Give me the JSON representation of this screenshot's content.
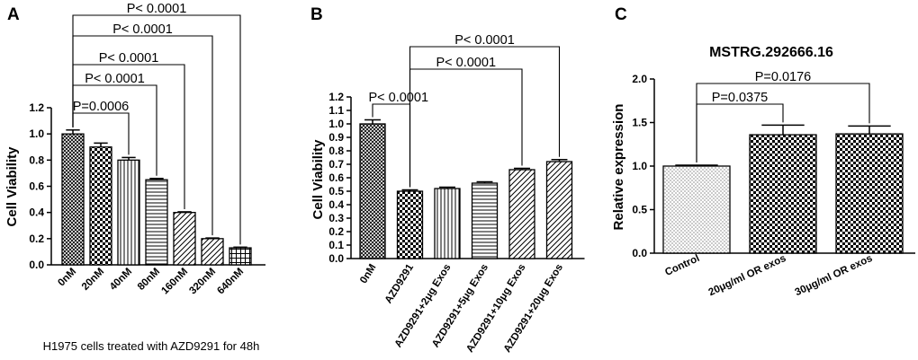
{
  "chart_data": [
    {
      "type": "bar",
      "panel": "A",
      "title": "",
      "ylabel": "Cell Viability",
      "xlabel": "H1975 cells treated with AZD9291 for 48h",
      "ylim": [
        0,
        1.2
      ],
      "yticks": [
        "0.0",
        "0.2",
        "0.4",
        "0.6",
        "0.8",
        "1.0",
        "1.2"
      ],
      "categories": [
        "0nM",
        "20nM",
        "40nM",
        "80nM",
        "160nM",
        "320nM",
        "640nM"
      ],
      "values": [
        1.0,
        0.9,
        0.8,
        0.65,
        0.4,
        0.2,
        0.13
      ],
      "errors": [
        0.03,
        0.03,
        0.02,
        0.01,
        0.005,
        0.005,
        0.005
      ],
      "patterns": [
        "crosshatch",
        "checker",
        "vlines",
        "hlines",
        "diag",
        "diag",
        "grid"
      ],
      "comparisons": [
        {
          "from": 0,
          "to": 2,
          "label": "P=0.0006"
        },
        {
          "from": 0,
          "to": 3,
          "label": "P< 0.0001"
        },
        {
          "from": 0,
          "to": 4,
          "label": "P< 0.0001"
        },
        {
          "from": 0,
          "to": 5,
          "label": "P< 0.0001"
        },
        {
          "from": 0,
          "to": 6,
          "label": "P< 0.0001"
        }
      ]
    },
    {
      "type": "bar",
      "panel": "B",
      "title": "",
      "ylabel": "Cell Viability",
      "xlabel": "",
      "ylim": [
        0,
        1.2
      ],
      "yticks": [
        "0.0",
        "0.1",
        "0.2",
        "0.3",
        "0.4",
        "0.5",
        "0.6",
        "0.7",
        "0.8",
        "0.9",
        "1.0",
        "1.1",
        "1.2"
      ],
      "categories": [
        "0nM",
        "AZD9291",
        "AZD9291+2μg Exos",
        "AZD9291+5μg Exos",
        "AZD9291+10μg Exos",
        "AZD9291+20μg Exos"
      ],
      "values": [
        1.0,
        0.5,
        0.52,
        0.56,
        0.66,
        0.72
      ],
      "errors": [
        0.03,
        0.01,
        0.01,
        0.01,
        0.01,
        0.015
      ],
      "patterns": [
        "crosshatch",
        "checker",
        "vlines",
        "hlines",
        "diag",
        "diag"
      ],
      "comparisons": [
        {
          "from": 0,
          "to": 1,
          "label": "P< 0.0001"
        },
        {
          "from": 1,
          "to": 4,
          "label": "P< 0.0001"
        },
        {
          "from": 1,
          "to": 5,
          "label": "P< 0.0001"
        }
      ]
    },
    {
      "type": "bar",
      "panel": "C",
      "title": "MSTRG.292666.16",
      "ylabel": "Relative expression",
      "xlabel": "",
      "ylim": [
        0,
        2.0
      ],
      "yticks": [
        "0.0",
        "0.5",
        "1.0",
        "1.5",
        "2.0"
      ],
      "categories": [
        "Control",
        "20μg/ml OR exos",
        "30μg/ml OR exos"
      ],
      "values": [
        1.0,
        1.36,
        1.37
      ],
      "errors": [
        0.01,
        0.11,
        0.09
      ],
      "patterns": [
        "dots",
        "checker",
        "checker"
      ],
      "comparisons": [
        {
          "from": 0,
          "to": 1,
          "label": "P=0.0375"
        },
        {
          "from": 0,
          "to": 2,
          "label": "P=0.0176"
        }
      ]
    }
  ]
}
